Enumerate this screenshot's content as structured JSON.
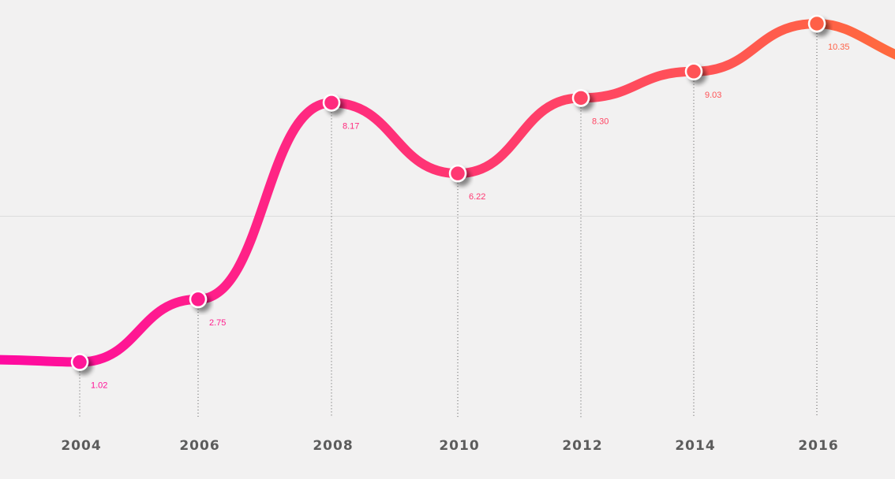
{
  "chart_data": {
    "type": "line",
    "x": [
      "2004",
      "2006",
      "2008",
      "2010",
      "2012",
      "2014",
      "2016"
    ],
    "values": [
      1.02,
      2.75,
      8.17,
      6.22,
      8.3,
      9.03,
      10.35
    ],
    "value_labels": [
      "1.02",
      "2.75",
      "8.17",
      "6.22",
      "8.30",
      "9.03",
      "10.35"
    ],
    "title": "",
    "xlabel": "",
    "ylabel": "",
    "grid": "single horizontal reference line",
    "legend": "none",
    "colors": {
      "start": "#ff0aa0",
      "mid": "#ff3a6e",
      "end": "#ff6a3e",
      "background": "#f2f1f1",
      "axis_text": "#5c5c5c"
    }
  }
}
